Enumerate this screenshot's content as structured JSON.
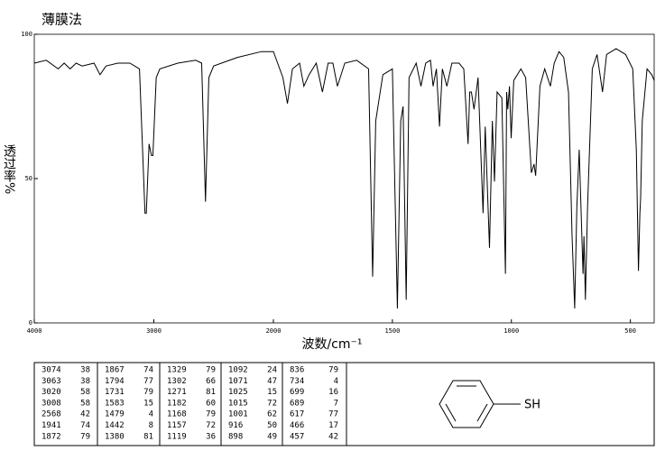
{
  "chart_data": {
    "type": "line",
    "title": "薄膜法",
    "ylabel": "透过率%",
    "xlabel": "波数/cm⁻¹",
    "xlim": [
      4000,
      400
    ],
    "x_scale_break": 2000,
    "xticks": [
      4000,
      3000,
      2000,
      1500,
      1000,
      500
    ],
    "ylim": [
      0,
      100
    ],
    "yticks": [
      0,
      50,
      100
    ],
    "x": [
      4000,
      3900,
      3800,
      3750,
      3700,
      3650,
      3600,
      3500,
      3450,
      3400,
      3300,
      3200,
      3120,
      3074,
      3063,
      3040,
      3020,
      3008,
      2980,
      2950,
      2800,
      2650,
      2600,
      2568,
      2540,
      2500,
      2300,
      2100,
      2000,
      1960,
      1941,
      1920,
      1890,
      1872,
      1850,
      1820,
      1794,
      1770,
      1750,
      1731,
      1700,
      1650,
      1600,
      1583,
      1570,
      1540,
      1500,
      1479,
      1465,
      1455,
      1442,
      1430,
      1400,
      1380,
      1360,
      1340,
      1329,
      1315,
      1302,
      1290,
      1271,
      1250,
      1220,
      1200,
      1182,
      1175,
      1168,
      1157,
      1140,
      1119,
      1110,
      1092,
      1080,
      1071,
      1060,
      1040,
      1025,
      1020,
      1015,
      1008,
      1001,
      990,
      960,
      940,
      916,
      905,
      898,
      880,
      860,
      836,
      820,
      800,
      780,
      760,
      745,
      734,
      725,
      715,
      699,
      695,
      689,
      680,
      660,
      640,
      617,
      600,
      560,
      520,
      490,
      475,
      466,
      460,
      457,
      450,
      430,
      410,
      400
    ],
    "series": [
      {
        "color": "#000000",
        "values": [
          90,
          91,
          88,
          90,
          88,
          90,
          89,
          90,
          86,
          89,
          90,
          90,
          88,
          38,
          38,
          62,
          58,
          58,
          85,
          88,
          90,
          91,
          90,
          42,
          85,
          89,
          92,
          94,
          94,
          85,
          76,
          88,
          90,
          82,
          86,
          90,
          80,
          90,
          90,
          82,
          90,
          91,
          88,
          16,
          70,
          86,
          88,
          5,
          70,
          75,
          8,
          85,
          90,
          82,
          90,
          91,
          82,
          88,
          68,
          88,
          82,
          90,
          90,
          88,
          62,
          80,
          80,
          74,
          85,
          38,
          68,
          26,
          70,
          49,
          80,
          78,
          17,
          80,
          74,
          82,
          64,
          84,
          88,
          85,
          52,
          55,
          51,
          82,
          88,
          82,
          90,
          94,
          92,
          80,
          30,
          5,
          40,
          60,
          17,
          30,
          8,
          40,
          88,
          93,
          80,
          93,
          95,
          93,
          88,
          60,
          18,
          38,
          43,
          70,
          88,
          86,
          84
        ]
      }
    ]
  },
  "peak_table": [
    [
      [
        3074,
        38
      ],
      [
        3063,
        38
      ],
      [
        3020,
        58
      ],
      [
        3008,
        58
      ],
      [
        2568,
        42
      ],
      [
        1941,
        74
      ],
      [
        1872,
        79
      ]
    ],
    [
      [
        1867,
        74
      ],
      [
        1794,
        77
      ],
      [
        1731,
        79
      ],
      [
        1583,
        15
      ],
      [
        1479,
        4
      ],
      [
        1442,
        8
      ],
      [
        1380,
        81
      ]
    ],
    [
      [
        1329,
        79
      ],
      [
        1302,
        66
      ],
      [
        1271,
        81
      ],
      [
        1182,
        60
      ],
      [
        1168,
        79
      ],
      [
        1157,
        72
      ],
      [
        1119,
        36
      ]
    ],
    [
      [
        1092,
        24
      ],
      [
        1071,
        47
      ],
      [
        1025,
        15
      ],
      [
        1015,
        72
      ],
      [
        1001,
        62
      ],
      [
        916,
        50
      ],
      [
        898,
        49
      ]
    ],
    [
      [
        836,
        79
      ],
      [
        734,
        4
      ],
      [
        699,
        16
      ],
      [
        689,
        7
      ],
      [
        617,
        77
      ],
      [
        466,
        17
      ],
      [
        457,
        42
      ]
    ]
  ],
  "structure": {
    "substituent": "SH"
  }
}
